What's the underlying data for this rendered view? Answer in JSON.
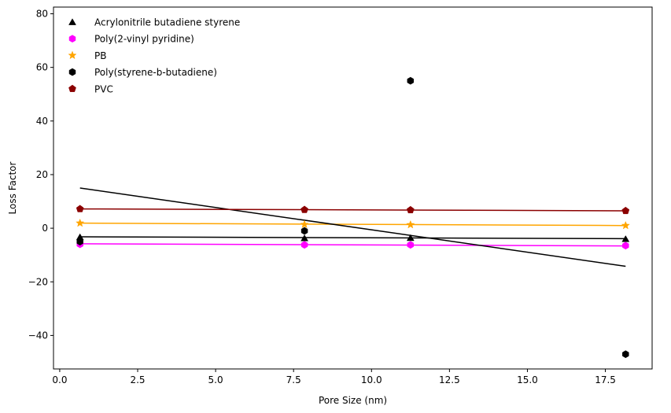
{
  "chart_data": {
    "type": "scatter",
    "title": "",
    "xlabel": "Pore Size (nm)",
    "ylabel": "Loss Factor",
    "xlim": [
      -0.2,
      19.0
    ],
    "ylim": [
      -52.5,
      82.5
    ],
    "xticks": [
      0.0,
      2.5,
      5.0,
      7.5,
      10.0,
      12.5,
      15.0,
      17.5
    ],
    "xtick_labels": [
      "0.0",
      "2.5",
      "5.0",
      "7.5",
      "10.0",
      "12.5",
      "15.0",
      "17.5"
    ],
    "yticks": [
      -40,
      -20,
      0,
      20,
      40,
      60,
      80
    ],
    "ytick_labels": [
      "−40",
      "−20",
      "0",
      "20",
      "40",
      "60",
      "80"
    ],
    "grid": false,
    "legend_position": "top-left",
    "series": [
      {
        "name": "Acrylonitrile butadiene styrene",
        "marker": "triangle",
        "color": "#000000",
        "x": [
          0.65,
          7.85,
          11.25,
          18.15
        ],
        "y": [
          -3.3,
          -3.7,
          -3.6,
          -4.0
        ],
        "fit": [
          [
            0.65,
            -3.2
          ],
          [
            18.15,
            -3.9
          ]
        ]
      },
      {
        "name": "Poly(2-vinyl pyridine)",
        "marker": "hexagon",
        "color": "#ff00ff",
        "x": [
          0.65,
          7.85,
          11.25,
          18.15
        ],
        "y": [
          -6.0,
          -6.2,
          -6.2,
          -6.5
        ],
        "fit": [
          [
            0.65,
            -5.8
          ],
          [
            18.15,
            -6.6
          ]
        ]
      },
      {
        "name": "PB",
        "marker": "star",
        "color": "#ffa500",
        "x": [
          0.65,
          7.85,
          11.25,
          18.15
        ],
        "y": [
          1.9,
          1.4,
          1.3,
          1.0
        ],
        "fit": [
          [
            0.65,
            1.9
          ],
          [
            18.15,
            1.0
          ]
        ]
      },
      {
        "name": "Poly(styrene-b-butadiene)",
        "marker": "hexagon",
        "color": "#000000",
        "x": [
          0.65,
          7.85,
          11.25,
          18.15
        ],
        "y": [
          -5.0,
          -1.0,
          55.0,
          -47.0
        ],
        "fit": [
          [
            0.65,
            15.0
          ],
          [
            18.15,
            -14.2
          ]
        ]
      },
      {
        "name": "PVC",
        "marker": "pentagon",
        "color": "#8b0000",
        "x": [
          0.65,
          7.85,
          11.25,
          18.15
        ],
        "y": [
          7.2,
          6.9,
          6.8,
          6.5
        ],
        "fit": [
          [
            0.65,
            7.2
          ],
          [
            18.15,
            6.5
          ]
        ]
      }
    ]
  }
}
